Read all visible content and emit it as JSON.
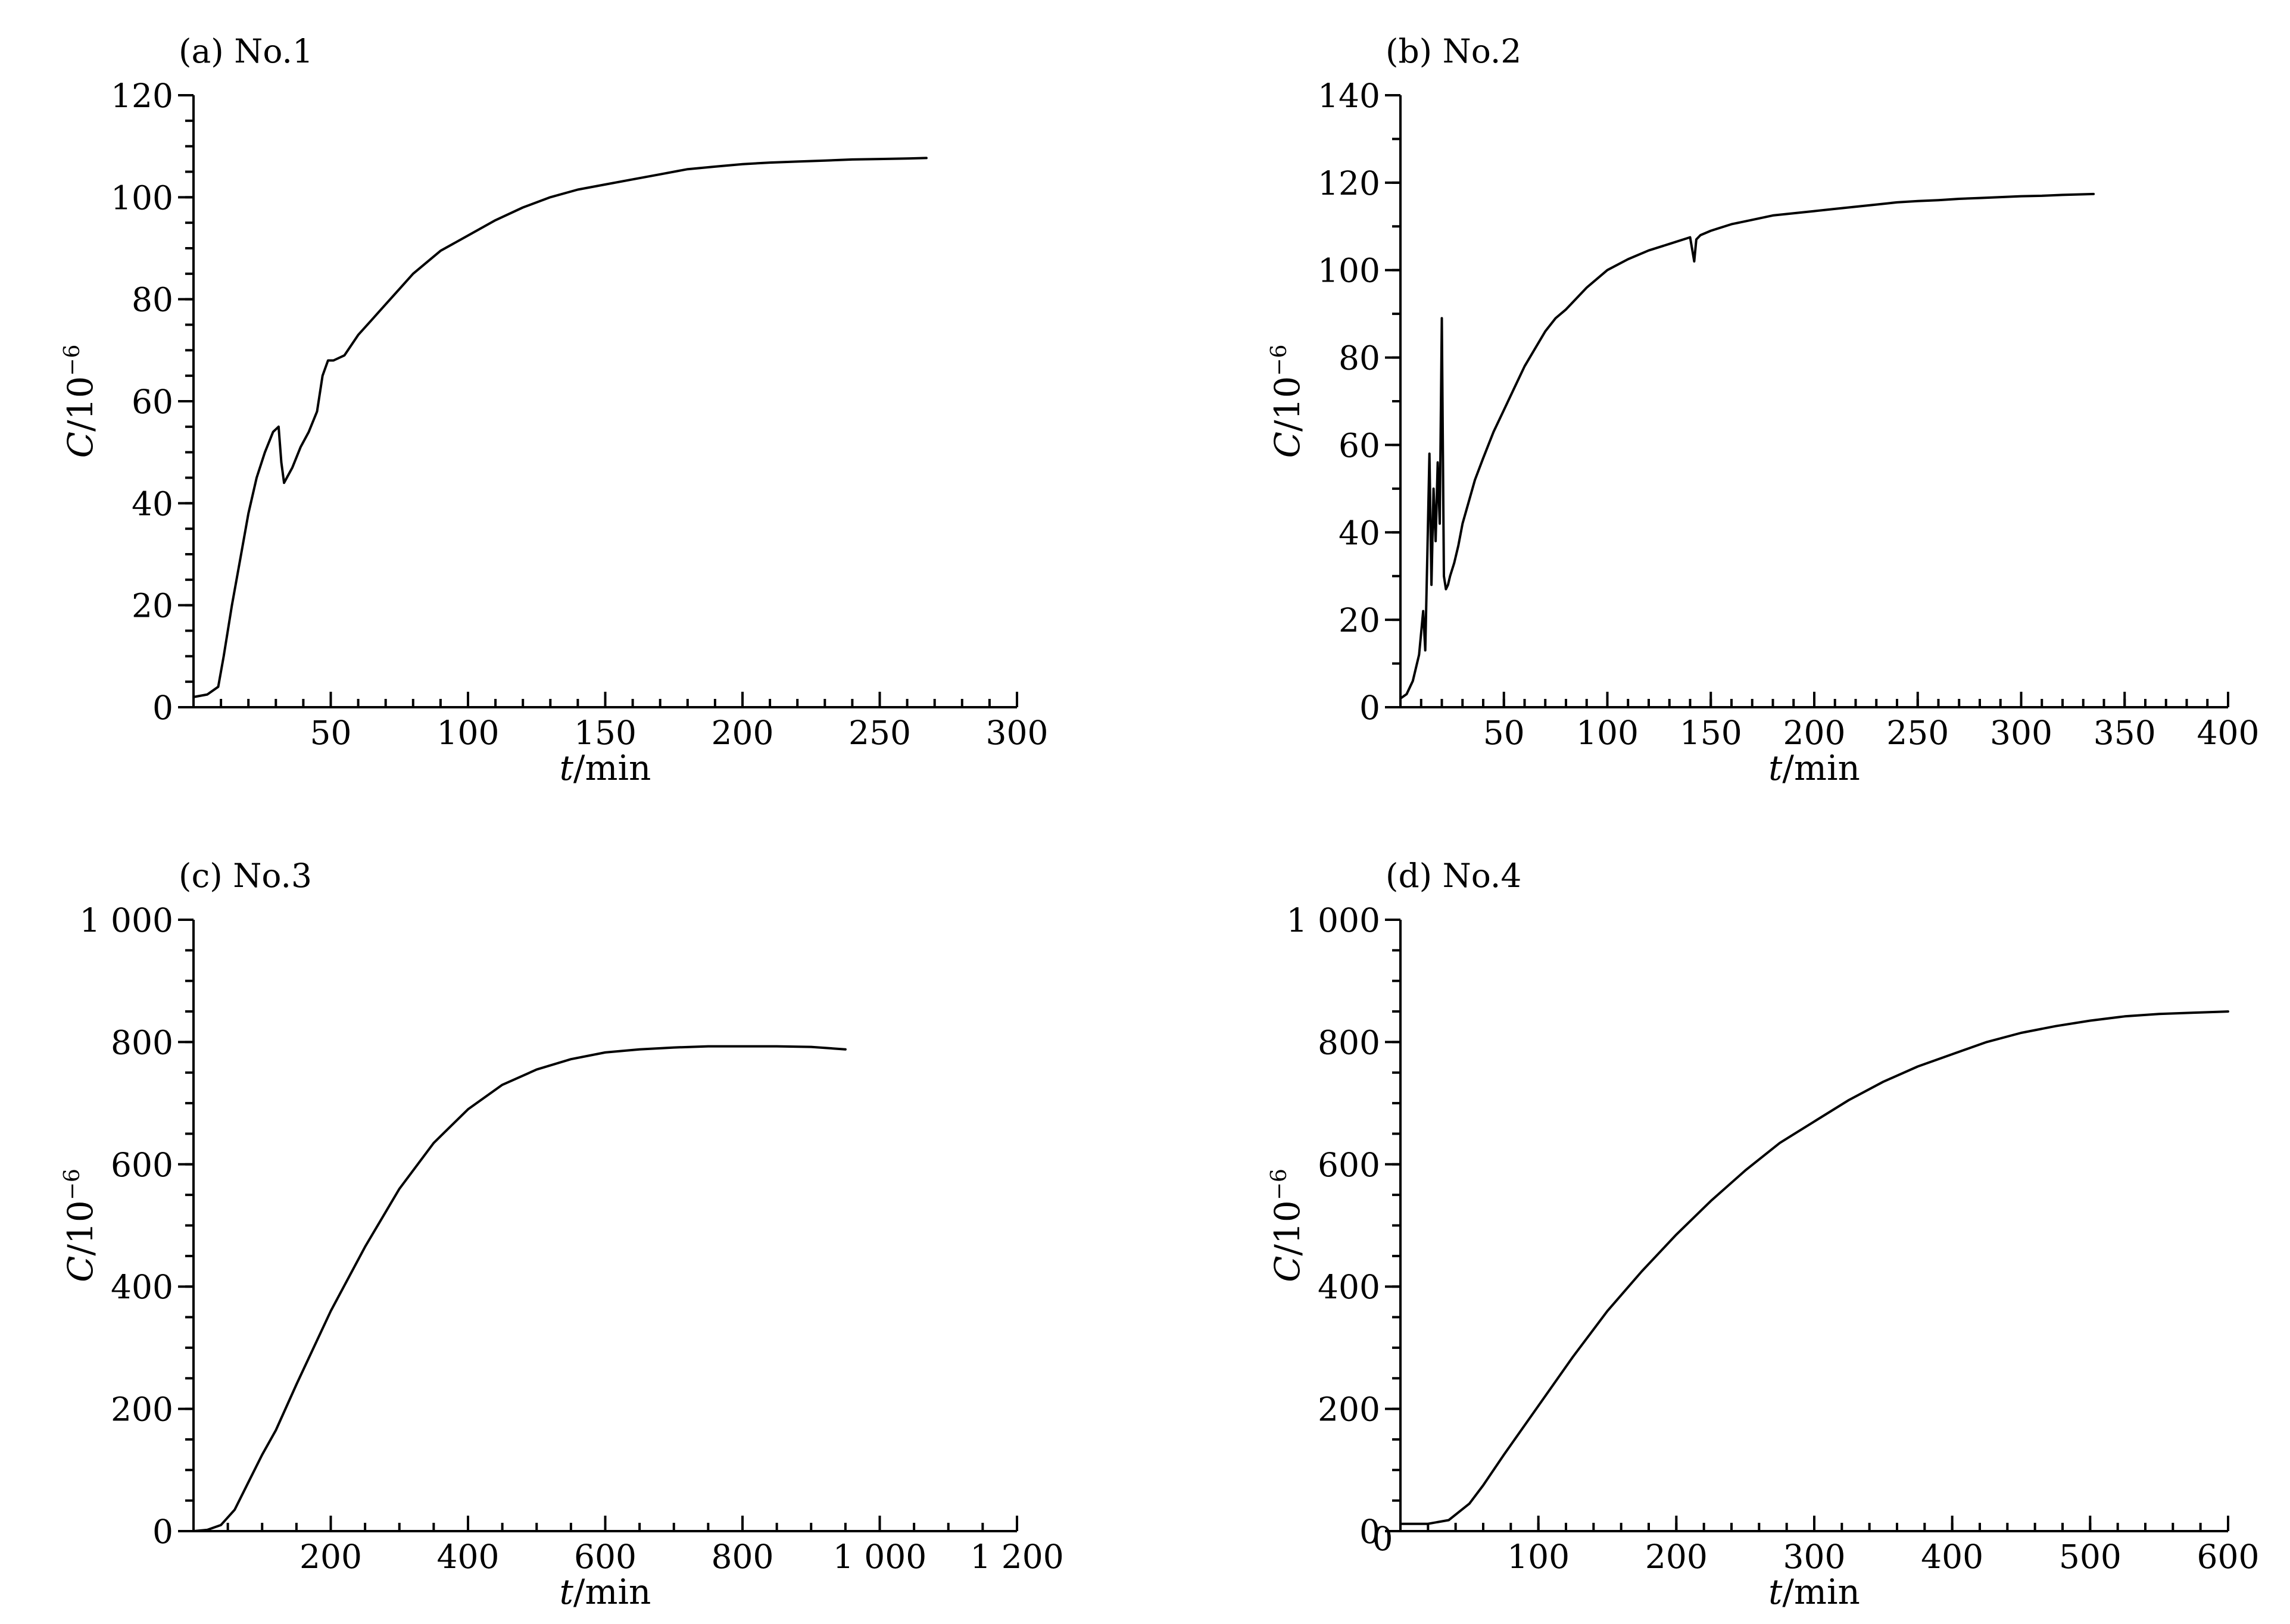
{
  "figure": {
    "ytitle_main": "C",
    "ytitle_unit": "/10",
    "ytitle_exp": "−6",
    "xtitle_main": "t",
    "xtitle_unit": "/min"
  },
  "chart_data": [
    {
      "type": "line",
      "title": "(a) No.1",
      "xlabel": "t/min",
      "ylabel": "C/10−6",
      "xlim": [
        0,
        300
      ],
      "ylim": [
        0,
        120
      ],
      "xticks": [
        50,
        100,
        150,
        200,
        250,
        300
      ],
      "xtick_labels": [
        "50",
        "100",
        "150",
        "200",
        "250",
        "300"
      ],
      "yticks": [
        0,
        20,
        40,
        60,
        80,
        100,
        120
      ],
      "ytick_labels": [
        "0",
        "20",
        "40",
        "60",
        "80",
        "100",
        "120"
      ],
      "x_minor": 10,
      "y_minor": 5,
      "x_origin_label": "",
      "series": [
        {
          "x": [
            0,
            5,
            9,
            11,
            14,
            17,
            20,
            23,
            26,
            29,
            31,
            32,
            33,
            34,
            36,
            39,
            42,
            45,
            47,
            49,
            51,
            55,
            60,
            65,
            70,
            75,
            80,
            90,
            100,
            110,
            120,
            130,
            140,
            150,
            160,
            170,
            180,
            190,
            200,
            210,
            220,
            230,
            240,
            250,
            260,
            267
          ],
          "y": [
            2,
            2.5,
            4,
            10,
            20,
            29,
            38,
            45,
            50,
            54,
            55,
            48,
            44,
            45,
            47,
            51,
            54,
            58,
            65,
            68,
            68,
            69,
            73,
            76,
            79,
            82,
            85,
            89.5,
            92.5,
            95.5,
            98,
            100,
            101.5,
            102.5,
            103.5,
            104.5,
            105.5,
            106,
            106.5,
            106.8,
            107,
            107.2,
            107.4,
            107.5,
            107.6,
            107.7
          ]
        }
      ]
    },
    {
      "type": "line",
      "title": "(b) No.2",
      "xlabel": "t/min",
      "ylabel": "C/10−6",
      "xlim": [
        0,
        400
      ],
      "ylim": [
        0,
        140
      ],
      "xticks": [
        50,
        100,
        150,
        200,
        250,
        300,
        350,
        400
      ],
      "xtick_labels": [
        "50",
        "100",
        "150",
        "200",
        "250",
        "300",
        "350",
        "400"
      ],
      "yticks": [
        0,
        20,
        40,
        60,
        80,
        100,
        120,
        140
      ],
      "ytick_labels": [
        "0",
        "20",
        "40",
        "60",
        "80",
        "100",
        "120",
        "140"
      ],
      "x_minor": 10,
      "y_minor": 10,
      "x_origin_label": "",
      "series": [
        {
          "x": [
            0,
            3,
            6,
            9,
            11,
            12,
            13,
            14,
            15,
            16,
            17,
            18,
            19,
            20,
            21,
            22,
            23,
            24,
            26,
            28,
            30,
            33,
            36,
            40,
            45,
            50,
            55,
            60,
            65,
            70,
            75,
            80,
            90,
            100,
            110,
            120,
            130,
            140,
            142,
            143,
            145,
            150,
            160,
            170,
            180,
            190,
            200,
            210,
            220,
            230,
            240,
            250,
            260,
            270,
            280,
            290,
            300,
            310,
            320,
            335
          ],
          "y": [
            2,
            3,
            6,
            12,
            22,
            13,
            35,
            58,
            28,
            50,
            38,
            56,
            42,
            89,
            30,
            27,
            28,
            30,
            33,
            37,
            42,
            47,
            52,
            57,
            63,
            68,
            73,
            78,
            82,
            86,
            89,
            91,
            96,
            100,
            102.5,
            104.5,
            106,
            107.5,
            102,
            107,
            108,
            109,
            110.5,
            111.5,
            112.5,
            113,
            113.5,
            114,
            114.5,
            115,
            115.5,
            115.8,
            116,
            116.3,
            116.5,
            116.7,
            116.9,
            117,
            117.2,
            117.4
          ]
        }
      ]
    },
    {
      "type": "line",
      "title": "(c) No.3",
      "xlabel": "t/min",
      "ylabel": "C/10−6",
      "xlim": [
        0,
        1200
      ],
      "ylim": [
        0,
        1000
      ],
      "xticks": [
        200,
        400,
        600,
        800,
        1000,
        1200
      ],
      "xtick_labels": [
        "200",
        "400",
        "600",
        "800",
        "1 000",
        "1 200"
      ],
      "yticks": [
        0,
        200,
        400,
        600,
        800,
        1000
      ],
      "ytick_labels": [
        "0",
        "200",
        "400",
        "600",
        "800",
        "1 000"
      ],
      "x_minor": 50,
      "y_minor": 50,
      "x_origin_label": "",
      "series": [
        {
          "x": [
            0,
            20,
            40,
            60,
            80,
            100,
            120,
            150,
            200,
            250,
            300,
            350,
            400,
            450,
            500,
            550,
            600,
            650,
            700,
            750,
            800,
            850,
            900,
            950
          ],
          "y": [
            0,
            2,
            10,
            35,
            80,
            125,
            165,
            240,
            360,
            465,
            560,
            635,
            690,
            730,
            755,
            772,
            783,
            788,
            791,
            793,
            793,
            793,
            792,
            788
          ]
        }
      ]
    },
    {
      "type": "line",
      "title": "(d) No.4",
      "xlabel": "t/min",
      "ylabel": "C/10−6",
      "xlim": [
        0,
        600
      ],
      "ylim": [
        0,
        1000
      ],
      "xticks": [
        100,
        200,
        300,
        400,
        500,
        600
      ],
      "xtick_labels": [
        "100",
        "200",
        "300",
        "400",
        "500",
        "600"
      ],
      "yticks": [
        0,
        200,
        400,
        600,
        800,
        1000
      ],
      "ytick_labels": [
        "0",
        "200",
        "400",
        "600",
        "800",
        "1 000"
      ],
      "x_minor": 20,
      "y_minor": 50,
      "x_origin_label": "0",
      "series": [
        {
          "x": [
            0,
            20,
            35,
            50,
            60,
            75,
            100,
            125,
            150,
            175,
            200,
            225,
            250,
            275,
            300,
            325,
            350,
            375,
            400,
            425,
            450,
            475,
            500,
            525,
            550,
            575,
            600
          ],
          "y": [
            12,
            12,
            18,
            45,
            75,
            125,
            205,
            285,
            360,
            425,
            485,
            540,
            590,
            635,
            670,
            705,
            735,
            760,
            780,
            800,
            815,
            826,
            835,
            842,
            846,
            848,
            850
          ]
        }
      ]
    }
  ]
}
